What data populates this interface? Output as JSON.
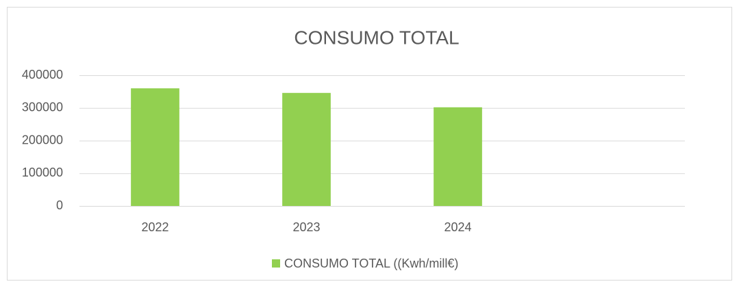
{
  "chart_data": {
    "type": "bar",
    "title": "CONSUMO TOTAL",
    "categories": [
      "2022",
      "2023",
      "2024",
      null
    ],
    "series": [
      {
        "name": "CONSUMO TOTAL ((Kwh/mill€)",
        "color": "#92d050",
        "values": [
          360000,
          346000,
          302000,
          null
        ]
      }
    ],
    "ylim": [
      0,
      400000
    ],
    "yticks": [
      0,
      100000,
      200000,
      300000,
      400000
    ],
    "grid": true,
    "legend": "bottom"
  }
}
